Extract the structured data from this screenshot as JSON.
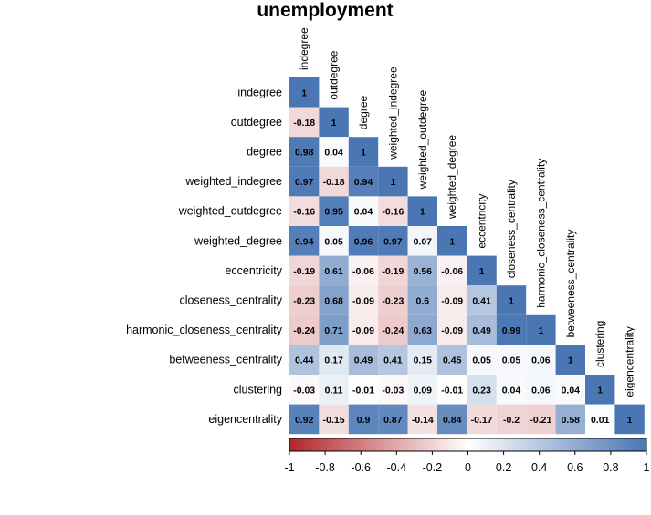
{
  "chart_data": {
    "type": "heatmap",
    "title": "unemployment",
    "variables": [
      "indegree",
      "outdegree",
      "degree",
      "weighted_indegree",
      "weighted_outdegree",
      "weighted_degree",
      "eccentricity",
      "closeness_centrality",
      "harmonic_closeness_centrality",
      "betweeness_centrality",
      "clustering",
      "eigencentrality"
    ],
    "matrix_lower_triangle": [
      [
        1
      ],
      [
        -0.18,
        1
      ],
      [
        0.98,
        0.04,
        1
      ],
      [
        0.97,
        -0.18,
        0.94,
        1
      ],
      [
        -0.16,
        0.95,
        0.04,
        -0.16,
        1
      ],
      [
        0.94,
        0.05,
        0.96,
        0.97,
        0.07,
        1
      ],
      [
        -0.19,
        0.61,
        -0.06,
        -0.19,
        0.56,
        -0.06,
        1
      ],
      [
        -0.23,
        0.68,
        -0.09,
        -0.23,
        0.6,
        -0.09,
        0.41,
        1
      ],
      [
        -0.24,
        0.71,
        -0.09,
        -0.24,
        0.63,
        -0.09,
        0.49,
        0.99,
        1
      ],
      [
        0.44,
        0.17,
        0.49,
        0.41,
        0.15,
        0.45,
        0.05,
        0.05,
        0.06,
        1
      ],
      [
        -0.03,
        0.11,
        -0.01,
        -0.03,
        0.09,
        -0.01,
        0.23,
        0.04,
        0.06,
        0.04,
        1
      ],
      [
        0.92,
        -0.15,
        0.9,
        0.87,
        -0.14,
        0.84,
        -0.17,
        -0.2,
        -0.21,
        0.58,
        0.01,
        1
      ]
    ],
    "color_scale": {
      "range": [
        -1,
        1
      ],
      "ticks": [
        "-1",
        "-0.8",
        "-0.6",
        "-0.4",
        "-0.2",
        "0",
        "0.2",
        "0.4",
        "0.6",
        "0.8",
        "1"
      ],
      "colors": {
        "neg": "#b2262b",
        "mid": "#ffffff",
        "pos": "#4a77b4"
      }
    }
  }
}
